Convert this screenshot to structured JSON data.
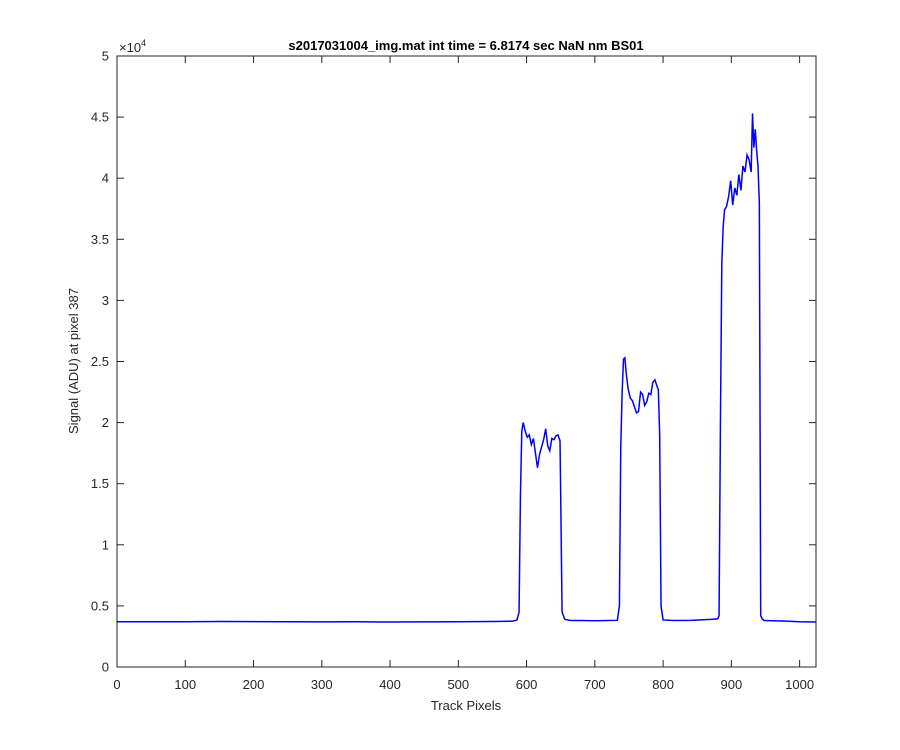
{
  "chart_data": {
    "type": "line",
    "title": "s2017031004_img.mat int time = 6.8174 sec  NaN nm BS01",
    "xlabel": "Track Pixels",
    "ylabel": "Signal (ADU) at pixel 387",
    "xlim": [
      0,
      1024
    ],
    "ylim": [
      0,
      50000
    ],
    "xticks": [
      0,
      100,
      200,
      300,
      400,
      500,
      600,
      700,
      800,
      900,
      1000
    ],
    "yticks": [
      0,
      5000,
      10000,
      15000,
      20000,
      25000,
      30000,
      35000,
      40000,
      45000,
      50000
    ],
    "xtick_labels": [
      "0",
      "100",
      "200",
      "300",
      "400",
      "500",
      "600",
      "700",
      "800",
      "900",
      "1000"
    ],
    "ytick_labels": [
      "0",
      "0.5",
      "1",
      "1.5",
      "2",
      "2.5",
      "3",
      "3.5",
      "4",
      "4.5",
      "5"
    ],
    "y_multiplier_base": "×10",
    "y_multiplier_exp": "4",
    "grid": false,
    "line_color": "#0000ff",
    "series": [
      {
        "x": [
          0,
          50,
          100,
          150,
          200,
          250,
          300,
          350,
          400,
          450,
          500,
          550,
          580,
          586,
          589,
          591,
          593,
          595,
          598,
          601,
          604,
          607,
          610,
          613,
          616,
          619,
          622,
          625,
          628,
          631,
          634,
          637,
          640,
          643,
          646,
          649,
          650,
          652,
          656,
          665,
          680,
          700,
          720,
          733,
          736,
          738,
          740,
          742,
          744,
          746,
          749,
          752,
          755,
          758,
          761,
          764,
          767,
          770,
          773,
          776,
          779,
          782,
          785,
          788,
          791,
          793,
          795,
          797,
          800,
          815,
          840,
          870,
          880,
          882,
          884,
          886,
          888,
          890,
          893,
          896,
          899,
          902,
          905,
          908,
          911,
          914,
          917,
          920,
          923,
          926,
          929,
          931,
          933,
          935,
          937,
          939,
          941,
          943,
          945,
          948,
          960,
          980,
          1000,
          1024
        ],
        "y": [
          3700,
          3700,
          3700,
          3720,
          3710,
          3700,
          3690,
          3700,
          3680,
          3690,
          3700,
          3720,
          3750,
          3850,
          4500,
          14000,
          19300,
          20000,
          19300,
          18800,
          19000,
          18200,
          18700,
          17500,
          16300,
          17400,
          18000,
          18600,
          19500,
          18100,
          17700,
          18700,
          18600,
          18900,
          19000,
          18500,
          14000,
          4500,
          3900,
          3800,
          3800,
          3780,
          3800,
          3820,
          5000,
          18000,
          22500,
          25200,
          25300,
          24000,
          22700,
          22000,
          21800,
          21300,
          20800,
          20900,
          22500,
          22300,
          21400,
          21700,
          22400,
          22300,
          23300,
          23500,
          23000,
          22700,
          19000,
          5000,
          3850,
          3800,
          3820,
          3900,
          3950,
          4200,
          20000,
          33000,
          36000,
          37400,
          37700,
          38500,
          39800,
          37800,
          39200,
          38600,
          40300,
          39000,
          41000,
          40500,
          41900,
          41500,
          40500,
          45300,
          42500,
          44000,
          42300,
          41000,
          38000,
          4200,
          3950,
          3800,
          3780,
          3750,
          3700,
          3680
        ]
      }
    ]
  }
}
